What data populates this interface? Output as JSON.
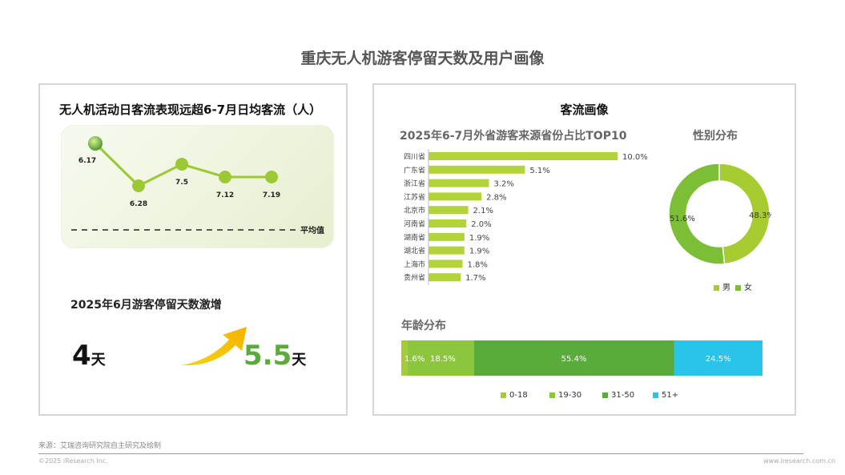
{
  "page": {
    "title": "重庆无人机游客停留天数及用户画像",
    "source": "来源：艾瑞咨询研究院自主研究及绘制",
    "copyright": "©2025 iResearch Inc.",
    "website": "www.iresearch.com.cn"
  },
  "left_panel": {
    "heading": "无人机活动日客流表现远超6-7月日均客流（人）",
    "avg_label": "平均值",
    "stay_heading": "2025年6月游客停留天数激增",
    "before_value": "4",
    "before_unit": "天",
    "after_value": "5.5",
    "after_unit": "天"
  },
  "right_panel": {
    "heading": "客流画像",
    "province_heading": "2025年6-7月外省游客来源省份占比TOP10",
    "gender_heading": "性别分布",
    "age_heading": "年龄分布"
  },
  "colors": {
    "bar_green": "#b3d33a",
    "male": "#a6cc32",
    "female": "#7cbe35",
    "age_0_18": "#a6cc32",
    "age_19_30": "#8cc63f",
    "age_31_50": "#5aaa3c",
    "age_51_plus": "#2ac3ea",
    "line_green": "#9cc933",
    "big_green": "#5aaa3c"
  },
  "chart_data": [
    {
      "type": "line",
      "x": [
        "6.17",
        "6.28",
        "7.5",
        "7.12",
        "7.19"
      ],
      "point_labels": [
        "6.17",
        "6.28",
        "7.5",
        "7.12",
        "7.19"
      ],
      "values_relative": [
        0.88,
        0.35,
        0.62,
        0.46,
        0.46
      ],
      "reference_line": "平均值"
    },
    {
      "type": "bar",
      "orientation": "horizontal",
      "title": "2025年6-7月外省游客来源省份占比TOP10",
      "categories": [
        "四川省",
        "广东省",
        "浙江省",
        "江苏省",
        "北京市",
        "河南省",
        "湖南省",
        "湖北省",
        "上海市",
        "贵州省"
      ],
      "values": [
        10.0,
        5.1,
        3.2,
        2.8,
        2.1,
        2.0,
        1.9,
        1.9,
        1.8,
        1.7
      ],
      "labels": [
        "10.0%",
        "5.1%",
        "3.2%",
        "2.8%",
        "2.1%",
        "2.0%",
        "1.9%",
        "1.9%",
        "1.8%",
        "1.7%"
      ],
      "unit": "%"
    },
    {
      "type": "pie",
      "title": "性别分布",
      "categories": [
        "男",
        "女"
      ],
      "values": [
        48.3,
        51.6
      ],
      "labels": [
        "48.3%",
        "51.6%"
      ]
    },
    {
      "type": "bar",
      "orientation": "horizontal-stacked",
      "title": "年龄分布",
      "categories": [
        "0-18",
        "19-30",
        "31-50",
        "51+"
      ],
      "values": [
        1.6,
        18.5,
        55.4,
        24.5
      ],
      "labels": [
        "1.6%",
        "18.5%",
        "55.4%",
        "24.5%"
      ]
    }
  ]
}
